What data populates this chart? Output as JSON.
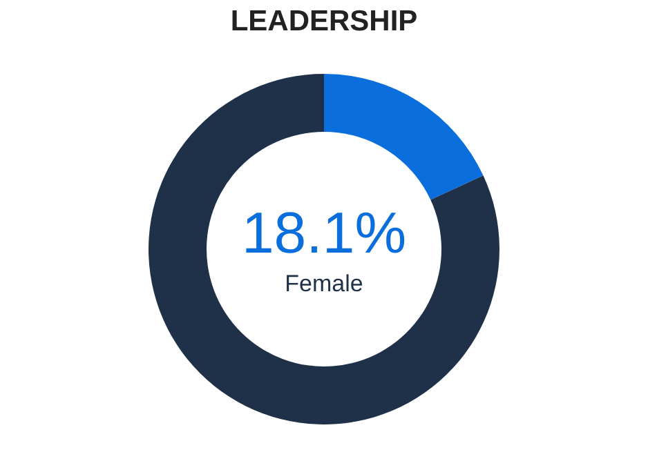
{
  "chart_data": {
    "type": "donut",
    "title": "LEADERSHIP",
    "categories": [
      "Female",
      null
    ],
    "values": [
      18.1,
      81.9
    ],
    "colors": [
      "#0a6fdc",
      "#1f3049"
    ],
    "value_labels": [
      "18.1%",
      null
    ],
    "legend": false
  }
}
